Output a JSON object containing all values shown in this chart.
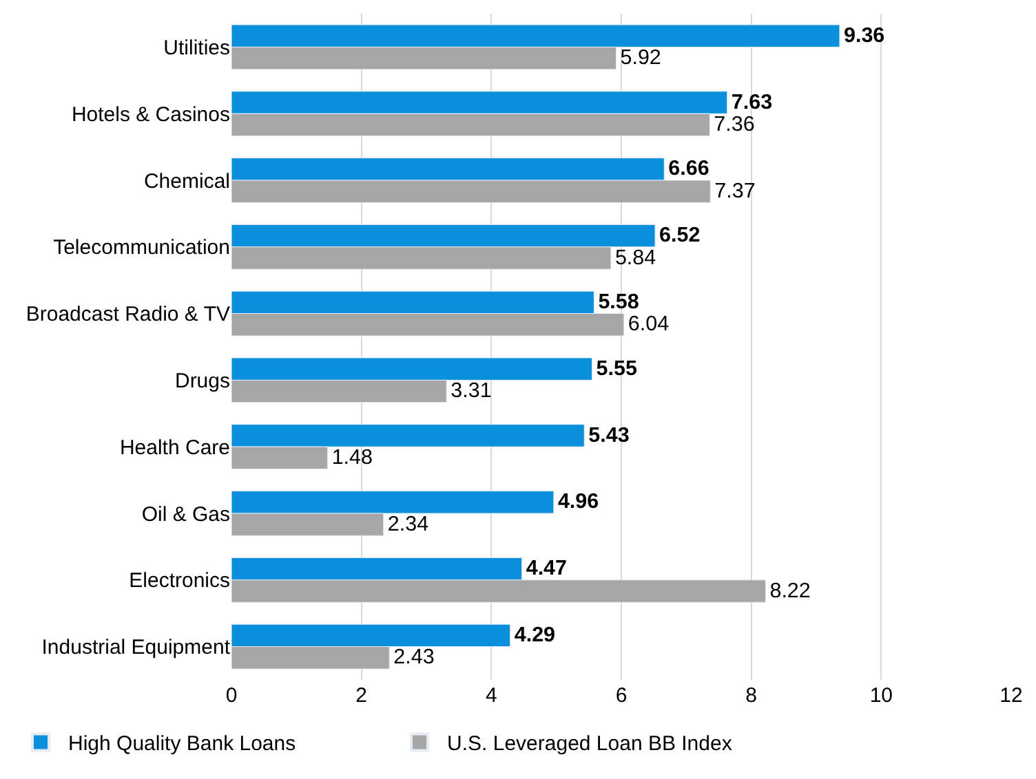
{
  "chart_data": {
    "type": "bar",
    "orientation": "horizontal",
    "categories": [
      "Utilities",
      "Hotels & Casinos",
      "Chemical",
      "Telecommunication",
      "Broadcast Radio & TV",
      "Drugs",
      "Health Care",
      "Oil & Gas",
      "Electronics",
      "Industrial Equipment"
    ],
    "series": [
      {
        "name": "High Quality Bank Loans",
        "color": "#0a8fdc",
        "values": [
          9.36,
          7.63,
          6.66,
          6.52,
          5.58,
          5.55,
          5.43,
          4.96,
          4.47,
          4.29
        ]
      },
      {
        "name": "U.S. Leveraged Loan BB Index",
        "color": "#a6a6a6",
        "values": [
          5.92,
          7.36,
          7.37,
          5.84,
          6.04,
          3.31,
          1.48,
          2.34,
          8.22,
          2.43
        ]
      }
    ],
    "xlim": [
      0,
      12
    ],
    "xticks": [
      0,
      2,
      4,
      6,
      8,
      10,
      12
    ],
    "grid": "x",
    "legend": "bottom",
    "data_labels": true
  }
}
